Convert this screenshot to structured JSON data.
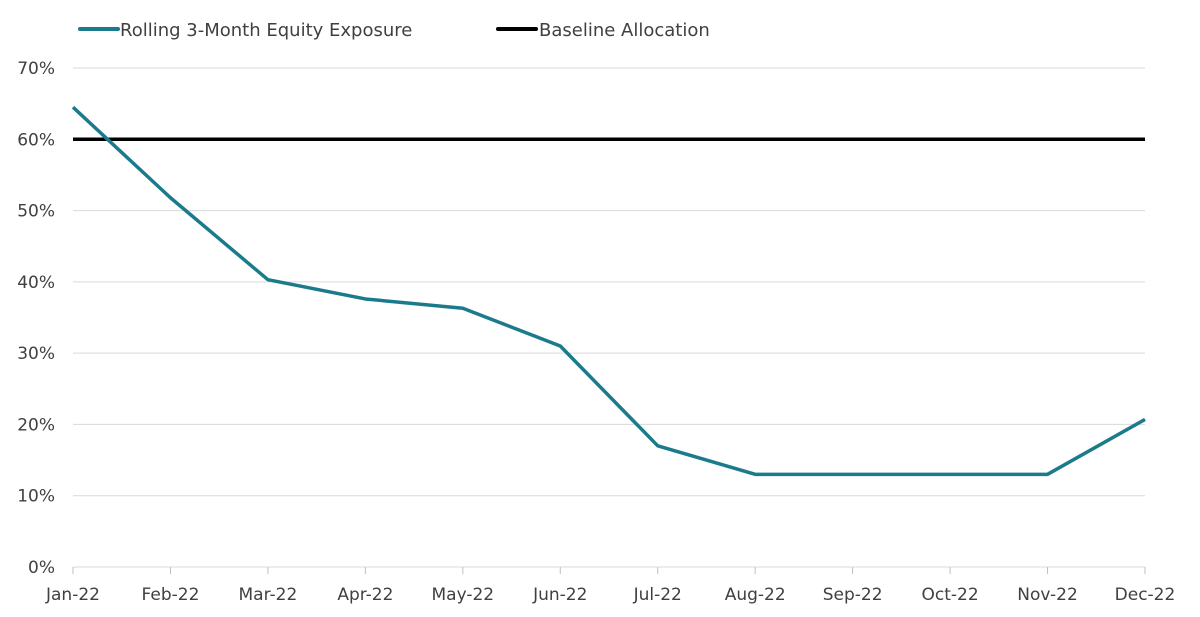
{
  "chart_data": {
    "type": "line",
    "categories": [
      "Jan-22",
      "Feb-22",
      "Mar-22",
      "Apr-22",
      "May-22",
      "Jun-22",
      "Jul-22",
      "Aug-22",
      "Sep-22",
      "Oct-22",
      "Nov-22",
      "Dec-22"
    ],
    "series": [
      {
        "name": "Rolling 3-Month Equity Exposure",
        "color": "#1b7b8c",
        "values": [
          64.5,
          51.8,
          40.3,
          37.6,
          36.3,
          31.0,
          17.0,
          13.0,
          13.0,
          13.0,
          13.0,
          20.7
        ]
      },
      {
        "name": "Baseline Allocation",
        "color": "#000000",
        "values": [
          60,
          60,
          60,
          60,
          60,
          60,
          60,
          60,
          60,
          60,
          60,
          60
        ]
      }
    ],
    "yticks": [
      "0%",
      "10%",
      "20%",
      "30%",
      "40%",
      "50%",
      "60%",
      "70%"
    ],
    "ylim": [
      0,
      70
    ],
    "grid": true,
    "legend_position": "top-left"
  }
}
